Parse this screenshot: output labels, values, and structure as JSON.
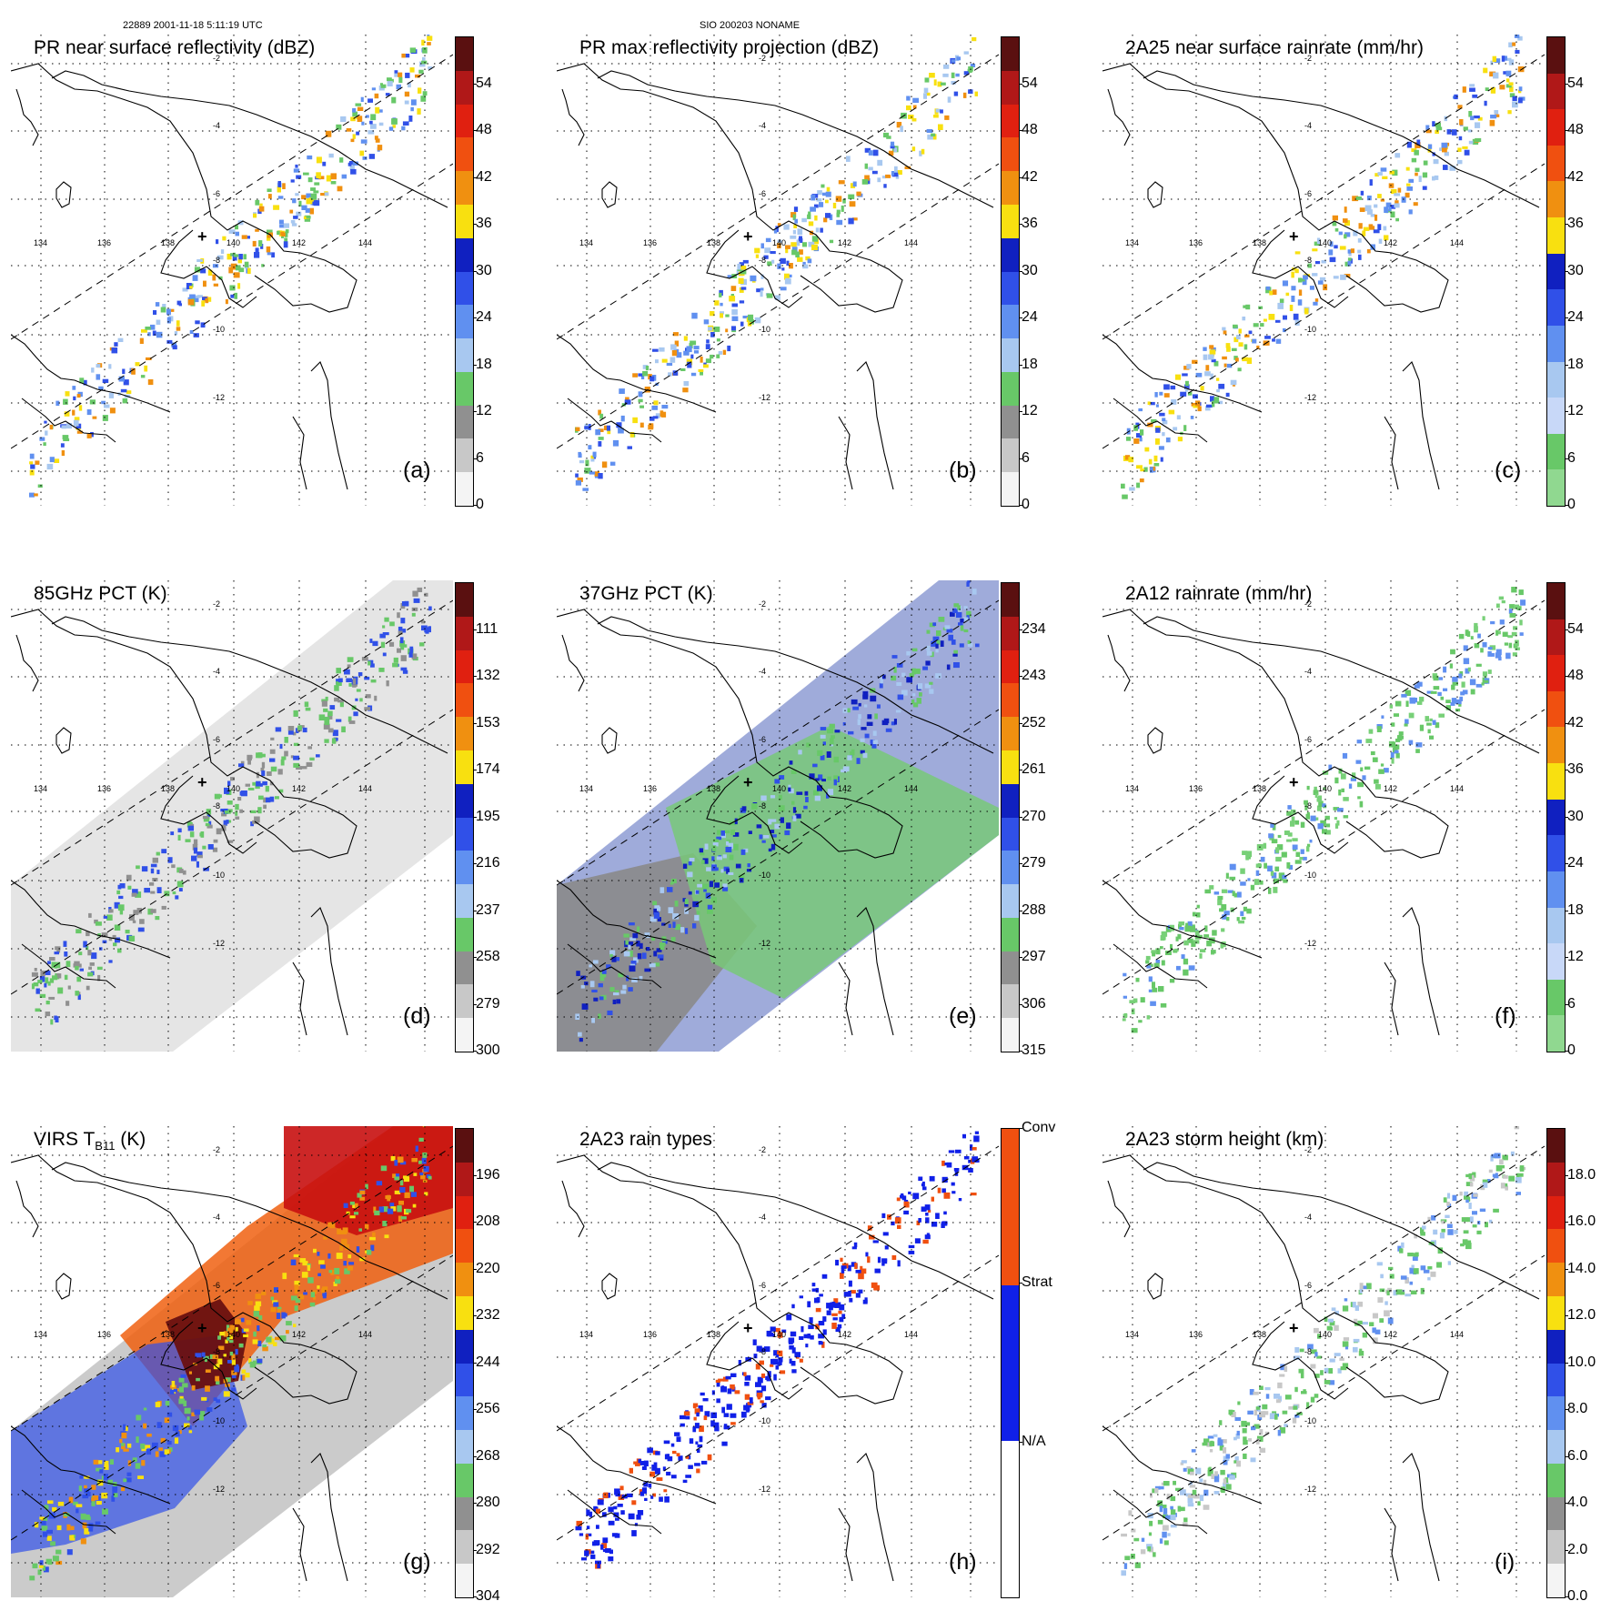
{
  "header": {
    "left": "22889 2001-11-18 5:11:19 UTC",
    "center": "SIO 200203 NONAME"
  },
  "lat_labels": [
    "-2",
    "-4",
    "-6",
    "-8",
    "-10",
    "-12"
  ],
  "lon_labels": [
    "134",
    "136",
    "138",
    "140",
    "142",
    "144"
  ],
  "panels": [
    {
      "title": "PR near surface reflectivity (dBZ)",
      "label": "(a)",
      "field": "swath",
      "ticks": [
        "54",
        "48",
        "42",
        "36",
        "30",
        "24",
        "18",
        "12",
        "6",
        "0"
      ],
      "colors": [
        "#5a1010",
        "#b01818",
        "#e02010",
        "#f05010",
        "#f09010",
        "#f8e010",
        "#1020c0",
        "#3050e8",
        "#6090f0",
        "#a8c8f0",
        "#68c868",
        "#909090",
        "#c8c8c8",
        "#f4f4f4"
      ]
    },
    {
      "title": "PR max reflectivity projection (dBZ)",
      "label": "(b)",
      "field": "swath",
      "ticks": [
        "54",
        "48",
        "42",
        "36",
        "30",
        "24",
        "18",
        "12",
        "6",
        "0"
      ],
      "colors": [
        "#5a1010",
        "#b01818",
        "#e02010",
        "#f05010",
        "#f09010",
        "#f8e010",
        "#1020c0",
        "#3050e8",
        "#6090f0",
        "#a8c8f0",
        "#68c868",
        "#909090",
        "#c8c8c8",
        "#f4f4f4"
      ]
    },
    {
      "title": "2A25 near surface rainrate (mm/hr)",
      "label": "(c)",
      "field": "swath",
      "ticks": [
        "54",
        "48",
        "42",
        "36",
        "30",
        "24",
        "18",
        "12",
        "6",
        "0"
      ],
      "colors": [
        "#5a1010",
        "#b01818",
        "#e02010",
        "#f05010",
        "#f09010",
        "#f8e010",
        "#1020c0",
        "#3050e8",
        "#6090f0",
        "#a8c8f0",
        "#c8d8f8",
        "#68c868",
        "#90d890"
      ]
    },
    {
      "title": "85GHz PCT (K)",
      "label": "(d)",
      "field": "wide-light",
      "ticks": [
        "111",
        "132",
        "153",
        "174",
        "195",
        "216",
        "237",
        "258",
        "279",
        "300"
      ],
      "colors": [
        "#5a1010",
        "#b01818",
        "#e02010",
        "#f05010",
        "#f09010",
        "#f8e010",
        "#1020c0",
        "#3050e8",
        "#6090f0",
        "#a8c8f0",
        "#68c868",
        "#909090",
        "#c8c8c8",
        "#f4f4f4"
      ]
    },
    {
      "title": "37GHz PCT (K)",
      "label": "(e)",
      "field": "wide-37",
      "ticks": [
        "234",
        "243",
        "252",
        "261",
        "270",
        "279",
        "288",
        "297",
        "306",
        "315"
      ],
      "colors": [
        "#5a1010",
        "#b01818",
        "#e02010",
        "#f05010",
        "#f09010",
        "#f8e010",
        "#1020c0",
        "#3050e8",
        "#6090f0",
        "#a8c8f0",
        "#68c868",
        "#909090",
        "#c8c8c8",
        "#f4f4f4"
      ]
    },
    {
      "title": "2A12 rainrate (mm/hr)",
      "label": "(f)",
      "field": "wide-rain",
      "ticks": [
        "54",
        "48",
        "42",
        "36",
        "30",
        "24",
        "18",
        "12",
        "6",
        "0"
      ],
      "colors": [
        "#5a1010",
        "#b01818",
        "#e02010",
        "#f05010",
        "#f09010",
        "#f8e010",
        "#1020c0",
        "#3050e8",
        "#6090f0",
        "#a8c8f0",
        "#c8d8f8",
        "#68c868",
        "#90d890"
      ]
    },
    {
      "title_main": "VIRS T",
      "title_sub": "B11",
      "title_tail": " (K)",
      "label": "(g)",
      "field": "wide-ir",
      "ticks": [
        "196",
        "208",
        "220",
        "232",
        "244",
        "256",
        "268",
        "280",
        "292",
        "304"
      ],
      "colors": [
        "#5a1010",
        "#b01818",
        "#e02010",
        "#f05010",
        "#f09010",
        "#f8e010",
        "#1020c0",
        "#3050e8",
        "#6090f0",
        "#a8c8f0",
        "#68c868",
        "#909090",
        "#c8c8c8",
        "#f4f4f4"
      ]
    },
    {
      "title": "2A23 rain types",
      "label": "(h)",
      "field": "swath-type",
      "ticks": [
        "Conv",
        "Strat",
        "N/A"
      ],
      "colors": [
        "#f05010",
        "#1020e8",
        "#ffffff"
      ]
    },
    {
      "title": "2A23 storm height (km)",
      "label": "(i)",
      "field": "swath-height",
      "ticks": [
        "18.0",
        "16.0",
        "14.0",
        "12.0",
        "10.0",
        "8.0",
        "6.0",
        "4.0",
        "2.0",
        "0.0"
      ],
      "colors": [
        "#5a1010",
        "#b01818",
        "#e02010",
        "#f05010",
        "#f09010",
        "#f8e010",
        "#1020c0",
        "#3050e8",
        "#6090f0",
        "#a8c8f0",
        "#68c868",
        "#909090",
        "#c8c8c8",
        "#f4f4f4"
      ]
    }
  ]
}
